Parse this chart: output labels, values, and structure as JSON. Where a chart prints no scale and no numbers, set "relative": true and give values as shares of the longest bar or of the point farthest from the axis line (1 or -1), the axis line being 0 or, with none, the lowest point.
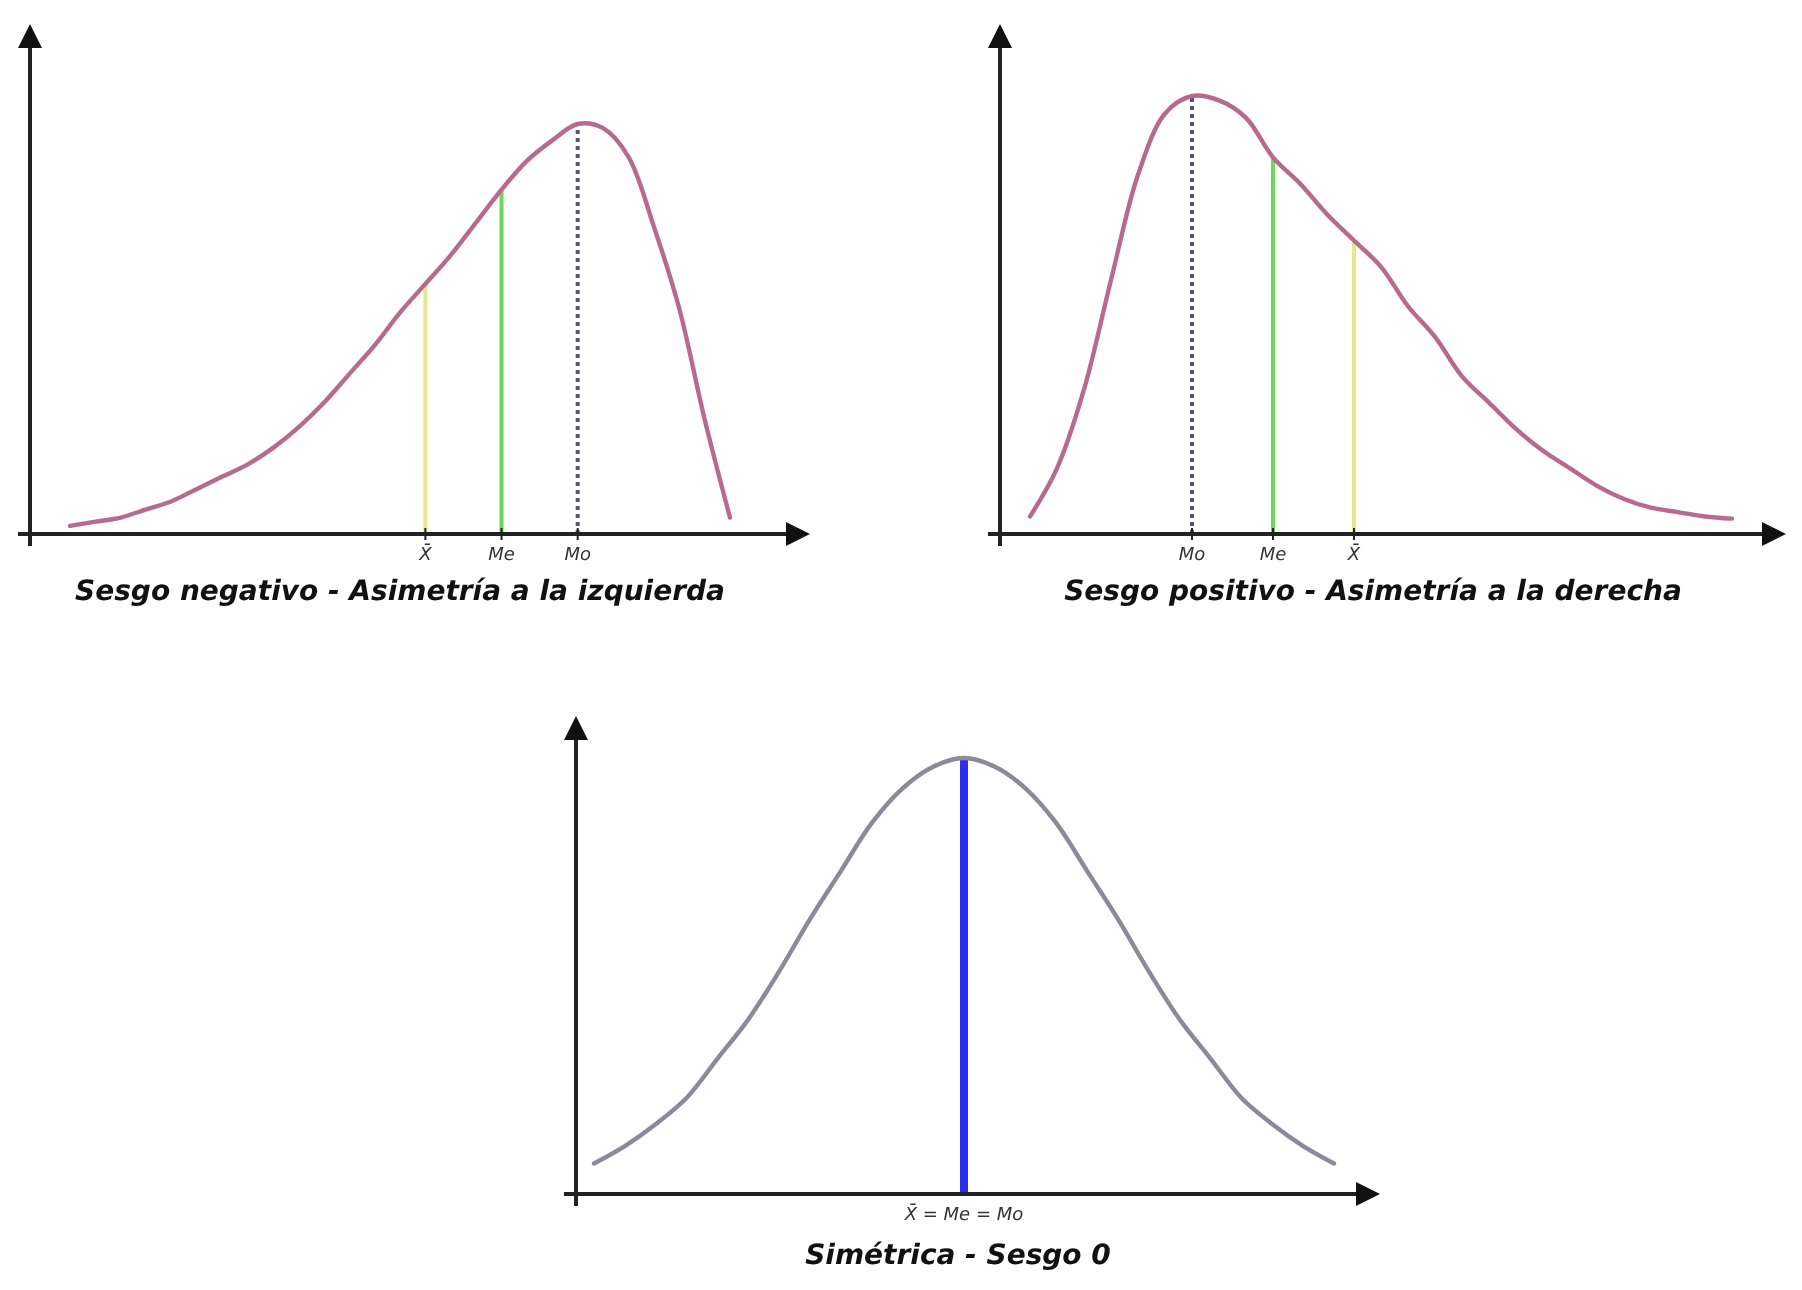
{
  "chart_data": [
    {
      "type": "line",
      "relative": true,
      "xlabel": "Sesgo negativo - Asimetría a la izquierda",
      "categories": [
        null,
        null,
        null,
        null,
        null,
        null,
        null,
        null,
        null,
        null,
        null,
        null,
        null,
        null,
        "X̄",
        null,
        null,
        "Me",
        null,
        null,
        "Mo",
        null,
        null,
        null,
        null,
        null,
        null
      ],
      "series": [
        {
          "color": "#b86a8e",
          "values": [
            0.02,
            0.03,
            0.04,
            0.06,
            0.08,
            0.11,
            0.14,
            0.17,
            0.21,
            0.26,
            0.32,
            0.39,
            0.46,
            0.54,
            0.61,
            0.68,
            0.76,
            0.84,
            0.91,
            0.96,
            1.0,
            0.99,
            0.92,
            0.75,
            0.55,
            0.28,
            0.04
          ]
        }
      ],
      "ref_lines": [
        {
          "axis": "x",
          "value": "X̄",
          "color": "#e6e68a"
        },
        {
          "axis": "x",
          "value": "Me",
          "color": "#6cd85a"
        },
        {
          "axis": "x",
          "value": "Mo",
          "color": "#55557a",
          "line_style": "dotted"
        }
      ]
    },
    {
      "type": "line",
      "relative": true,
      "xlabel": "Sesgo positivo - Asimetría a la derecha",
      "categories": [
        null,
        null,
        null,
        null,
        null,
        null,
        "Mo",
        null,
        null,
        "Me",
        null,
        null,
        "X̄",
        null,
        null,
        null,
        null,
        null,
        null,
        null,
        null,
        null,
        null,
        null,
        null,
        null,
        null
      ],
      "series": [
        {
          "color": "#b86a8e",
          "values": [
            0.04,
            0.15,
            0.33,
            0.58,
            0.82,
            0.96,
            1.0,
            0.99,
            0.95,
            0.86,
            0.8,
            0.73,
            0.67,
            0.61,
            0.52,
            0.45,
            0.36,
            0.3,
            0.24,
            0.19,
            0.15,
            0.11,
            0.08,
            0.06,
            0.05,
            0.04,
            0.035
          ]
        }
      ],
      "ref_lines": [
        {
          "axis": "x",
          "value": "Mo",
          "color": "#55557a",
          "line_style": "dotted"
        },
        {
          "axis": "x",
          "value": "Me",
          "color": "#6cd85a"
        },
        {
          "axis": "x",
          "value": "X̄",
          "color": "#e6e68a"
        }
      ]
    },
    {
      "type": "line",
      "relative": true,
      "xlabel": "Simétrica - Sesgo 0",
      "categories": [
        null,
        null,
        null,
        null,
        null,
        null,
        null,
        null,
        null,
        null,
        null,
        null,
        null,
        null,
        null,
        null,
        null,
        null,
        null,
        null,
        null,
        null,
        null,
        null,
        null
      ],
      "series": [
        {
          "color": "#8c8a98",
          "values": [
            0.07,
            0.11,
            0.16,
            0.22,
            0.31,
            0.4,
            0.51,
            0.63,
            0.74,
            0.85,
            0.93,
            0.98,
            1.0,
            0.98,
            0.93,
            0.85,
            0.74,
            0.63,
            0.51,
            0.4,
            0.31,
            0.22,
            0.16,
            0.11,
            0.07
          ]
        }
      ],
      "ref_lines": [
        {
          "axis": "x",
          "label": "X̄ = Me = Mo",
          "color": "#2a2ef0"
        }
      ]
    }
  ]
}
